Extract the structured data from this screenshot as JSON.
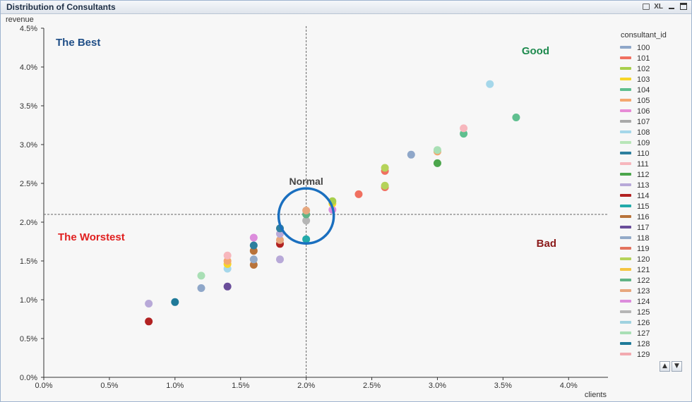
{
  "window": {
    "title": "Distribution of Consultants",
    "xl_label": "XL"
  },
  "chart_data": {
    "type": "scatter",
    "title": "",
    "xlabel": "clients",
    "ylabel": "revenue",
    "xlim": [
      0,
      0.043
    ],
    "ylim": [
      0,
      0.045
    ],
    "x_ticks": [
      0,
      0.005,
      0.01,
      0.015,
      0.02,
      0.025,
      0.03,
      0.035,
      0.04
    ],
    "x_tick_labels": [
      "0.0%",
      "0.5%",
      "1.0%",
      "1.5%",
      "2.0%",
      "2.5%",
      "3.0%",
      "3.5%",
      "4.0%"
    ],
    "y_ticks": [
      0,
      0.005,
      0.01,
      0.015,
      0.02,
      0.025,
      0.03,
      0.035,
      0.04,
      0.045
    ],
    "y_tick_labels": [
      "0.0%",
      "0.5%",
      "1.0%",
      "1.5%",
      "2.0%",
      "2.5%",
      "3.0%",
      "3.5%",
      "4.0%",
      "4.5%"
    ],
    "reference_lines": {
      "x": 0.02,
      "y": 0.021
    },
    "highlight_circle": {
      "cx": 0.02,
      "cy": 0.0208,
      "r_x": 0.0021,
      "label": "Normal"
    },
    "quadrant_labels": [
      {
        "text": "The Best",
        "color": "#1f4e87"
      },
      {
        "text": "Good",
        "color": "#1e8a4e"
      },
      {
        "text": "The Worstest",
        "color": "#e02020"
      },
      {
        "text": "Bad",
        "color": "#8b1a1a"
      }
    ],
    "legend_title": "consultant_id",
    "legend_position": "right",
    "series": [
      {
        "name": "100",
        "color": "#8fa7c9"
      },
      {
        "name": "101",
        "color": "#f07060"
      },
      {
        "name": "102",
        "color": "#a8cf4c"
      },
      {
        "name": "103",
        "color": "#f8d628"
      },
      {
        "name": "104",
        "color": "#5fbf8f"
      },
      {
        "name": "105",
        "color": "#f3a76f"
      },
      {
        "name": "106",
        "color": "#e78bd6"
      },
      {
        "name": "107",
        "color": "#a9a9a9"
      },
      {
        "name": "108",
        "color": "#a5d7ea"
      },
      {
        "name": "109",
        "color": "#b8e6b8"
      },
      {
        "name": "110",
        "color": "#2d7f9e"
      },
      {
        "name": "111",
        "color": "#f7b7bd"
      },
      {
        "name": "112",
        "color": "#4ca64c"
      },
      {
        "name": "113",
        "color": "#b8a9d8"
      },
      {
        "name": "114",
        "color": "#b22222"
      },
      {
        "name": "115",
        "color": "#22aaaa"
      },
      {
        "name": "116",
        "color": "#b8733a"
      },
      {
        "name": "117",
        "color": "#6a4e9a"
      },
      {
        "name": "118",
        "color": "#93aac8"
      },
      {
        "name": "119",
        "color": "#e3735e"
      },
      {
        "name": "120",
        "color": "#b5d35a"
      },
      {
        "name": "121",
        "color": "#f5c542"
      },
      {
        "name": "122",
        "color": "#60b386"
      },
      {
        "name": "123",
        "color": "#e7a77e"
      },
      {
        "name": "124",
        "color": "#dc8cdc"
      },
      {
        "name": "125",
        "color": "#b5b5b5"
      },
      {
        "name": "126",
        "color": "#9fd2e0"
      },
      {
        "name": "127",
        "color": "#a9dfb5"
      },
      {
        "name": "128",
        "color": "#1f7a99"
      },
      {
        "name": "129",
        "color": "#f2aab0"
      }
    ],
    "points": [
      {
        "x": 0.008,
        "y": 0.0072,
        "color": "#b22222"
      },
      {
        "x": 0.008,
        "y": 0.0095,
        "color": "#b8a9d8"
      },
      {
        "x": 0.01,
        "y": 0.0097,
        "color": "#1f7a99"
      },
      {
        "x": 0.012,
        "y": 0.0115,
        "color": "#8fa7c9"
      },
      {
        "x": 0.012,
        "y": 0.0131,
        "color": "#a9dfb5"
      },
      {
        "x": 0.014,
        "y": 0.0117,
        "color": "#6a4e9a"
      },
      {
        "x": 0.014,
        "y": 0.014,
        "color": "#a5d7ea"
      },
      {
        "x": 0.014,
        "y": 0.0146,
        "color": "#f8d628"
      },
      {
        "x": 0.014,
        "y": 0.015,
        "color": "#f3a76f"
      },
      {
        "x": 0.014,
        "y": 0.0157,
        "color": "#f7b7bd"
      },
      {
        "x": 0.016,
        "y": 0.0145,
        "color": "#b8733a"
      },
      {
        "x": 0.016,
        "y": 0.0152,
        "color": "#93aac8"
      },
      {
        "x": 0.016,
        "y": 0.0163,
        "color": "#b8733a"
      },
      {
        "x": 0.016,
        "y": 0.017,
        "color": "#2d7f9e"
      },
      {
        "x": 0.016,
        "y": 0.018,
        "color": "#dc8cdc"
      },
      {
        "x": 0.018,
        "y": 0.0152,
        "color": "#b8a9d8"
      },
      {
        "x": 0.018,
        "y": 0.0172,
        "color": "#b22222"
      },
      {
        "x": 0.018,
        "y": 0.0177,
        "color": "#e7a77e"
      },
      {
        "x": 0.018,
        "y": 0.0185,
        "color": "#b8a9d8"
      },
      {
        "x": 0.018,
        "y": 0.0192,
        "color": "#2d7f9e"
      },
      {
        "x": 0.02,
        "y": 0.0178,
        "color": "#22aaaa"
      },
      {
        "x": 0.02,
        "y": 0.0202,
        "color": "#b5b5b5"
      },
      {
        "x": 0.02,
        "y": 0.021,
        "color": "#60b386"
      },
      {
        "x": 0.02,
        "y": 0.0215,
        "color": "#e7a77e"
      },
      {
        "x": 0.022,
        "y": 0.0216,
        "color": "#dc8cdc"
      },
      {
        "x": 0.022,
        "y": 0.0224,
        "color": "#f8d628"
      },
      {
        "x": 0.022,
        "y": 0.0227,
        "color": "#a8cf4c"
      },
      {
        "x": 0.024,
        "y": 0.0236,
        "color": "#f07060"
      },
      {
        "x": 0.026,
        "y": 0.0245,
        "color": "#f07060"
      },
      {
        "x": 0.026,
        "y": 0.0247,
        "color": "#b5d35a"
      },
      {
        "x": 0.026,
        "y": 0.0266,
        "color": "#f07060"
      },
      {
        "x": 0.026,
        "y": 0.027,
        "color": "#b5d35a"
      },
      {
        "x": 0.028,
        "y": 0.0287,
        "color": "#8fa7c9"
      },
      {
        "x": 0.03,
        "y": 0.0276,
        "color": "#4ca64c"
      },
      {
        "x": 0.03,
        "y": 0.0291,
        "color": "#f3a76f"
      },
      {
        "x": 0.03,
        "y": 0.0293,
        "color": "#a9dfb5"
      },
      {
        "x": 0.032,
        "y": 0.0314,
        "color": "#5fbf8f"
      },
      {
        "x": 0.032,
        "y": 0.0321,
        "color": "#f7b7bd"
      },
      {
        "x": 0.034,
        "y": 0.0378,
        "color": "#a5d7ea"
      },
      {
        "x": 0.036,
        "y": 0.0335,
        "color": "#5fbf8f"
      }
    ]
  }
}
